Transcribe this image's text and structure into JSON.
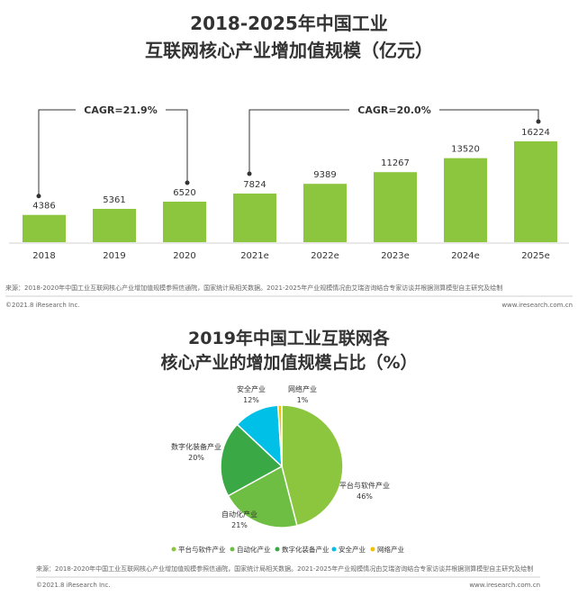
{
  "colors": {
    "bar": "#8CC63F",
    "platform": "#8CC63F",
    "automation": "#6FBE44",
    "digital_equipment": "#3AA845",
    "security": "#00C0E8",
    "network": "#F2C200",
    "bracket": "#333333",
    "rule": "#bfbfbf"
  },
  "chart_data": [
    {
      "type": "bar",
      "title": "2018-2025年中国工业",
      "subtitle": "互联网核心产业增加值规模（亿元）",
      "categories": [
        "2018",
        "2019",
        "2020",
        "2021e",
        "2022e",
        "2023e",
        "2024e",
        "2025e"
      ],
      "values": [
        4386,
        5361,
        6520,
        7824,
        9389,
        11267,
        13520,
        16224
      ],
      "annotations": [
        {
          "text": "CAGR=21.9%",
          "from": "2018",
          "to": "2020"
        },
        {
          "text": "CAGR=20.0%",
          "from": "2021e",
          "to": "2025e"
        }
      ],
      "grid": false,
      "source": "来源：2018-2020年中国工业互联网核心产业增加值规模参照信通院，国家统计局相关数据。2021-2025年产业规模情况由艾瑞咨询结合专家访谈并根据测算模型自主研究及绘制",
      "copyright": "©2021.8 iResearch Inc.",
      "website": "www.iresearch.com.cn"
    },
    {
      "type": "pie",
      "title": "2019年中国工业互联网各",
      "subtitle": "核心产业的增加值规模占比（%）",
      "slices": [
        {
          "label": "平台与软件产业",
          "value": 46,
          "display": "46%"
        },
        {
          "label": "自动化产业",
          "value": 21,
          "display": "21%"
        },
        {
          "label": "数字化装备产业",
          "value": 20,
          "display": "20%"
        },
        {
          "label": "安全产业",
          "value": 12,
          "display": "12%"
        },
        {
          "label": "网络产业",
          "value": 1,
          "display": "1%"
        }
      ],
      "legend_position": "bottom",
      "source": "来源：2018-2020年中国工业互联网核心产业增加值规模参照信通院，国家统计局相关数据。2021-2025年产业规模情况由艾瑞咨询结合专家访谈并根据测算模型自主研究及绘制",
      "copyright": "©2021.8 iResearch Inc.",
      "website": "www.iresearch.com.cn"
    }
  ]
}
